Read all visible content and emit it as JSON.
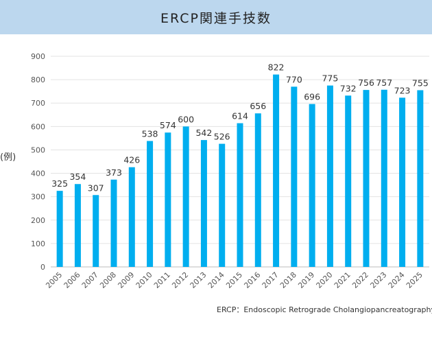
{
  "title": "ERCP関連手技数",
  "y_unit_label": "(例)",
  "footnote": "ERCP：Endoscopic Retrograde Cholangiopancreatography",
  "colors": {
    "bar": "#00aeef",
    "banner": "#bcd7ee",
    "grid": "#e3e3e3"
  },
  "chart_data": {
    "type": "bar",
    "categories": [
      "2005",
      "2006",
      "2007",
      "2008",
      "2009",
      "2010",
      "2011",
      "2012",
      "2013",
      "2014",
      "2015",
      "2016",
      "2017",
      "2018",
      "2019",
      "2020",
      "2021",
      "2022",
      "2023",
      "2024",
      "2025"
    ],
    "values": [
      325,
      354,
      307,
      373,
      426,
      538,
      574,
      600,
      542,
      526,
      614,
      656,
      822,
      770,
      696,
      775,
      732,
      756,
      757,
      723,
      755
    ],
    "ylim": [
      0,
      900
    ],
    "yticks": [
      0,
      100,
      200,
      300,
      400,
      500,
      600,
      700,
      800,
      900
    ],
    "grid": true,
    "data_labels": true
  }
}
